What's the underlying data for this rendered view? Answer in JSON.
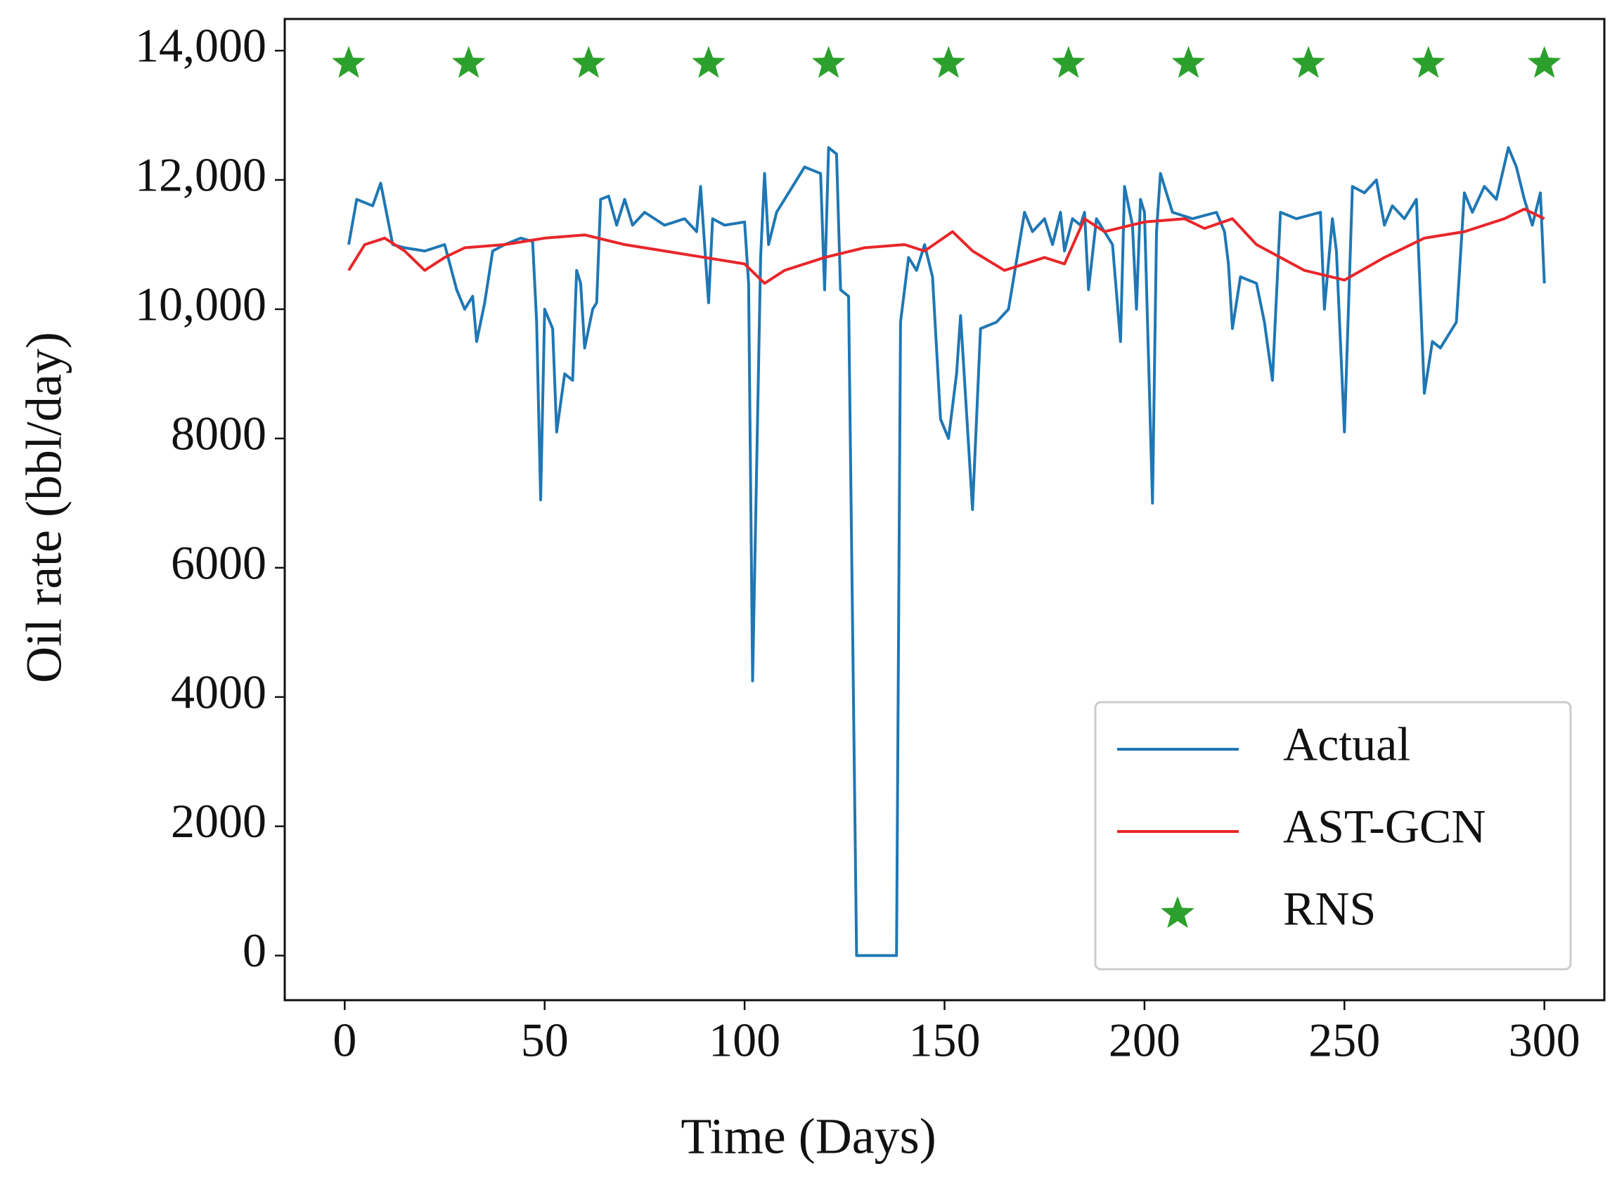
{
  "chart_data": {
    "type": "line",
    "xlabel": "Time (Days)",
    "ylabel": "Oil rate (bbl/day)",
    "xlim": [
      -15,
      315
    ],
    "xticks": [
      0,
      50,
      100,
      150,
      200,
      250,
      300
    ],
    "ylim": [
      -690,
      14490
    ],
    "yticks": [
      0,
      2000,
      4000,
      6000,
      8000,
      {
        "value": 10000,
        "label": "10,000"
      },
      {
        "value": 12000,
        "label": "12,000"
      },
      {
        "value": 14000,
        "label": "14,000"
      }
    ],
    "legend": "lower right",
    "series": [
      {
        "name": "Actual",
        "color": "#1f77b4",
        "type": "line",
        "x": [
          1,
          3,
          7,
          9,
          12,
          15,
          20,
          25,
          28,
          30,
          32,
          33,
          35,
          37,
          40,
          44,
          47,
          48,
          49,
          50,
          52,
          53,
          55,
          57,
          58,
          59,
          60,
          62,
          63,
          64,
          66,
          68,
          70,
          72,
          75,
          80,
          85,
          88,
          89,
          90,
          91,
          92,
          95,
          100,
          101,
          102,
          104,
          105,
          106,
          108,
          112,
          115,
          119,
          120,
          121,
          123,
          124,
          126,
          128,
          138,
          139,
          141,
          143,
          145,
          147,
          149,
          151,
          153,
          154,
          157,
          159,
          163,
          166,
          170,
          172,
          175,
          177,
          179,
          180,
          182,
          184,
          185,
          186,
          188,
          190,
          192,
          194,
          195,
          197,
          198,
          199,
          200,
          202,
          203,
          204,
          207,
          212,
          218,
          220,
          221,
          222,
          224,
          228,
          230,
          232,
          234,
          238,
          244,
          245,
          247,
          248,
          250,
          252,
          255,
          258,
          260,
          262,
          265,
          268,
          270,
          272,
          274,
          278,
          280,
          282,
          285,
          288,
          291,
          293,
          295,
          297,
          299,
          300
        ],
        "values": [
          11000,
          11700,
          11600,
          11950,
          11000,
          10950,
          10900,
          11000,
          10300,
          10000,
          10200,
          9500,
          10100,
          10900,
          11000,
          11100,
          11050,
          9800,
          7050,
          10000,
          9700,
          8100,
          9000,
          8900,
          10600,
          10400,
          9400,
          10000,
          10100,
          11700,
          11750,
          11300,
          11700,
          11300,
          11500,
          11300,
          11400,
          11200,
          11900,
          11000,
          10100,
          11400,
          11300,
          11350,
          10400,
          4250,
          10800,
          12100,
          11000,
          11500,
          11900,
          12200,
          12100,
          10300,
          12500,
          12400,
          10300,
          10200,
          0,
          0,
          9800,
          10800,
          10600,
          11000,
          10500,
          8300,
          8000,
          9000,
          9900,
          6900,
          9700,
          9800,
          10000,
          11500,
          11200,
          11400,
          11000,
          11500,
          10900,
          11400,
          11300,
          11500,
          10300,
          11400,
          11200,
          11000,
          9500,
          11900,
          11300,
          10000,
          11700,
          11500,
          7000,
          11200,
          12100,
          11500,
          11400,
          11500,
          11200,
          10700,
          9700,
          10500,
          10400,
          9800,
          8900,
          11500,
          11400,
          11500,
          10000,
          11400,
          10900,
          8100,
          11900,
          11800,
          12000,
          11300,
          11600,
          11400,
          11700,
          8700,
          9500,
          9400,
          9800,
          11800,
          11500,
          11900,
          11700,
          12500,
          12200,
          11700,
          11300,
          11800,
          10400
        ]
      },
      {
        "name": "AST-GCN",
        "color": "#e8262a",
        "type": "line",
        "x": [
          1,
          5,
          10,
          15,
          20,
          25,
          30,
          40,
          50,
          60,
          70,
          80,
          90,
          100,
          105,
          110,
          120,
          130,
          140,
          145,
          152,
          157,
          165,
          175,
          180,
          185,
          190,
          200,
          210,
          215,
          222,
          228,
          240,
          250,
          260,
          270,
          280,
          290,
          295,
          300
        ],
        "values": [
          10600,
          11000,
          11100,
          10900,
          10600,
          10800,
          10950,
          11000,
          11100,
          11150,
          11000,
          10900,
          10800,
          10700,
          10400,
          10600,
          10800,
          10950,
          11000,
          10900,
          11200,
          10900,
          10600,
          10800,
          10700,
          11400,
          11200,
          11350,
          11400,
          11250,
          11400,
          11000,
          10600,
          10450,
          10800,
          11100,
          11200,
          11400,
          11550,
          11400
        ]
      },
      {
        "name": "RNS",
        "color": "#2ca02c",
        "type": "scatter",
        "x": [
          1,
          31,
          61,
          91,
          121,
          151,
          181,
          211,
          241,
          271,
          300
        ],
        "values": [
          13800,
          13800,
          13800,
          13800,
          13800,
          13800,
          13800,
          13800,
          13800,
          13800,
          13800
        ]
      }
    ]
  }
}
